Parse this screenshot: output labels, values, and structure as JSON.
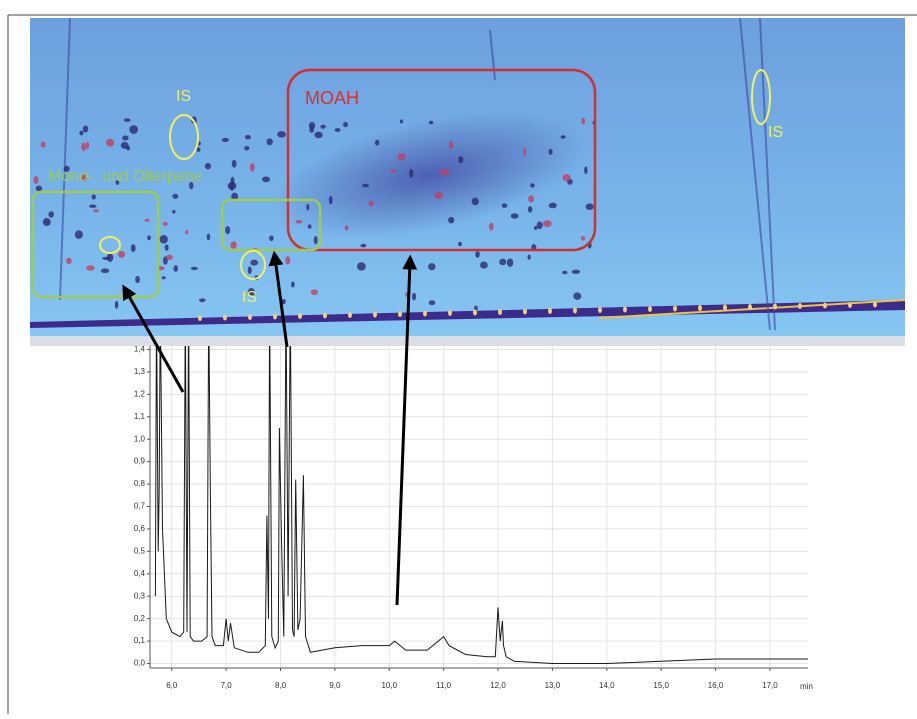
{
  "chart_data": {
    "type": "line",
    "x": [
      5.6,
      5.7,
      5.72,
      5.75,
      5.77,
      5.79,
      5.83,
      5.9,
      6.0,
      6.15,
      6.22,
      6.25,
      6.28,
      6.31,
      6.34,
      6.4,
      6.55,
      6.65,
      6.68,
      6.71,
      6.74,
      6.8,
      6.95,
      7.0,
      7.04,
      7.08,
      7.15,
      7.4,
      7.6,
      7.72,
      7.75,
      7.78,
      7.8,
      7.84,
      7.9,
      7.96,
      7.98,
      8.02,
      8.06,
      8.1,
      8.14,
      8.18,
      8.22,
      8.25,
      8.28,
      8.32,
      8.36,
      8.42,
      8.46,
      8.55,
      9.0,
      9.5,
      10.0,
      10.1,
      10.3,
      10.7,
      11.0,
      11.1,
      11.4,
      11.8,
      11.95,
      12.0,
      12.04,
      12.08,
      12.1,
      12.15,
      12.3,
      13.0,
      14.0,
      15.0,
      16.0,
      17.0,
      17.7
    ],
    "series": [
      {
        "color": "#1a1a1a",
        "values": [
          null,
          0.3,
          1.6,
          0.5,
          0.78,
          1.6,
          0.6,
          0.2,
          0.14,
          0.12,
          0.14,
          1.6,
          0.14,
          1.6,
          0.12,
          0.1,
          0.1,
          0.12,
          1.6,
          0.75,
          0.12,
          0.08,
          0.08,
          0.2,
          0.1,
          0.18,
          0.07,
          0.05,
          0.05,
          0.08,
          0.66,
          0.2,
          1.6,
          0.12,
          0.07,
          0.1,
          1.05,
          0.53,
          0.12,
          1.6,
          0.3,
          1.6,
          0.15,
          0.12,
          0.82,
          0.15,
          0.2,
          0.84,
          0.12,
          0.05,
          0.07,
          0.08,
          0.08,
          0.1,
          0.06,
          0.06,
          0.12,
          0.08,
          0.04,
          0.03,
          0.03,
          0.25,
          0.1,
          0.19,
          0.08,
          0.03,
          0.01,
          0.0,
          0.0,
          0.01,
          0.02,
          0.02,
          0.02
        ]
      }
    ],
    "xlim": [
      5.6,
      17.7
    ],
    "ylim": [
      -0.02,
      1.42
    ],
    "xticks": [
      {
        "value": 6,
        "label": "6,0"
      },
      {
        "value": 7,
        "label": "7,0"
      },
      {
        "value": 8,
        "label": "8,0"
      },
      {
        "value": 9,
        "label": "9,0"
      },
      {
        "value": 10,
        "label": "10,0"
      },
      {
        "value": 11,
        "label": "11,0"
      },
      {
        "value": 12,
        "label": "12,0"
      },
      {
        "value": 13,
        "label": "13,0"
      },
      {
        "value": 14,
        "label": "14,0"
      },
      {
        "value": 15,
        "label": "15,0"
      },
      {
        "value": 16,
        "label": "16,0"
      },
      {
        "value": 17,
        "label": "17,0"
      }
    ],
    "yticks": [
      {
        "value": 0,
        "label": "0,0"
      },
      {
        "value": 0.1,
        "label": "0,1"
      },
      {
        "value": 0.2,
        "label": "0,2"
      },
      {
        "value": 0.3,
        "label": "0,3"
      },
      {
        "value": 0.4,
        "label": "0,4"
      },
      {
        "value": 0.5,
        "label": "0,5"
      },
      {
        "value": 0.6,
        "label": "0,6"
      },
      {
        "value": 0.7,
        "label": "0,7"
      },
      {
        "value": 0.8,
        "label": "0,8"
      },
      {
        "value": 0.9,
        "label": "0,9"
      },
      {
        "value": 1,
        "label": "1,0"
      },
      {
        "value": 1.1,
        "label": "1,1"
      },
      {
        "value": 1.2,
        "label": "1,2"
      },
      {
        "value": 1.3,
        "label": "1,3"
      },
      {
        "value": 1.4,
        "label": "1,4"
      }
    ],
    "x_label": "min",
    "grid": true,
    "annotations": [
      "MOAH",
      "IS",
      "IS",
      "IS",
      "Mono-, und Diterpene"
    ]
  }
}
